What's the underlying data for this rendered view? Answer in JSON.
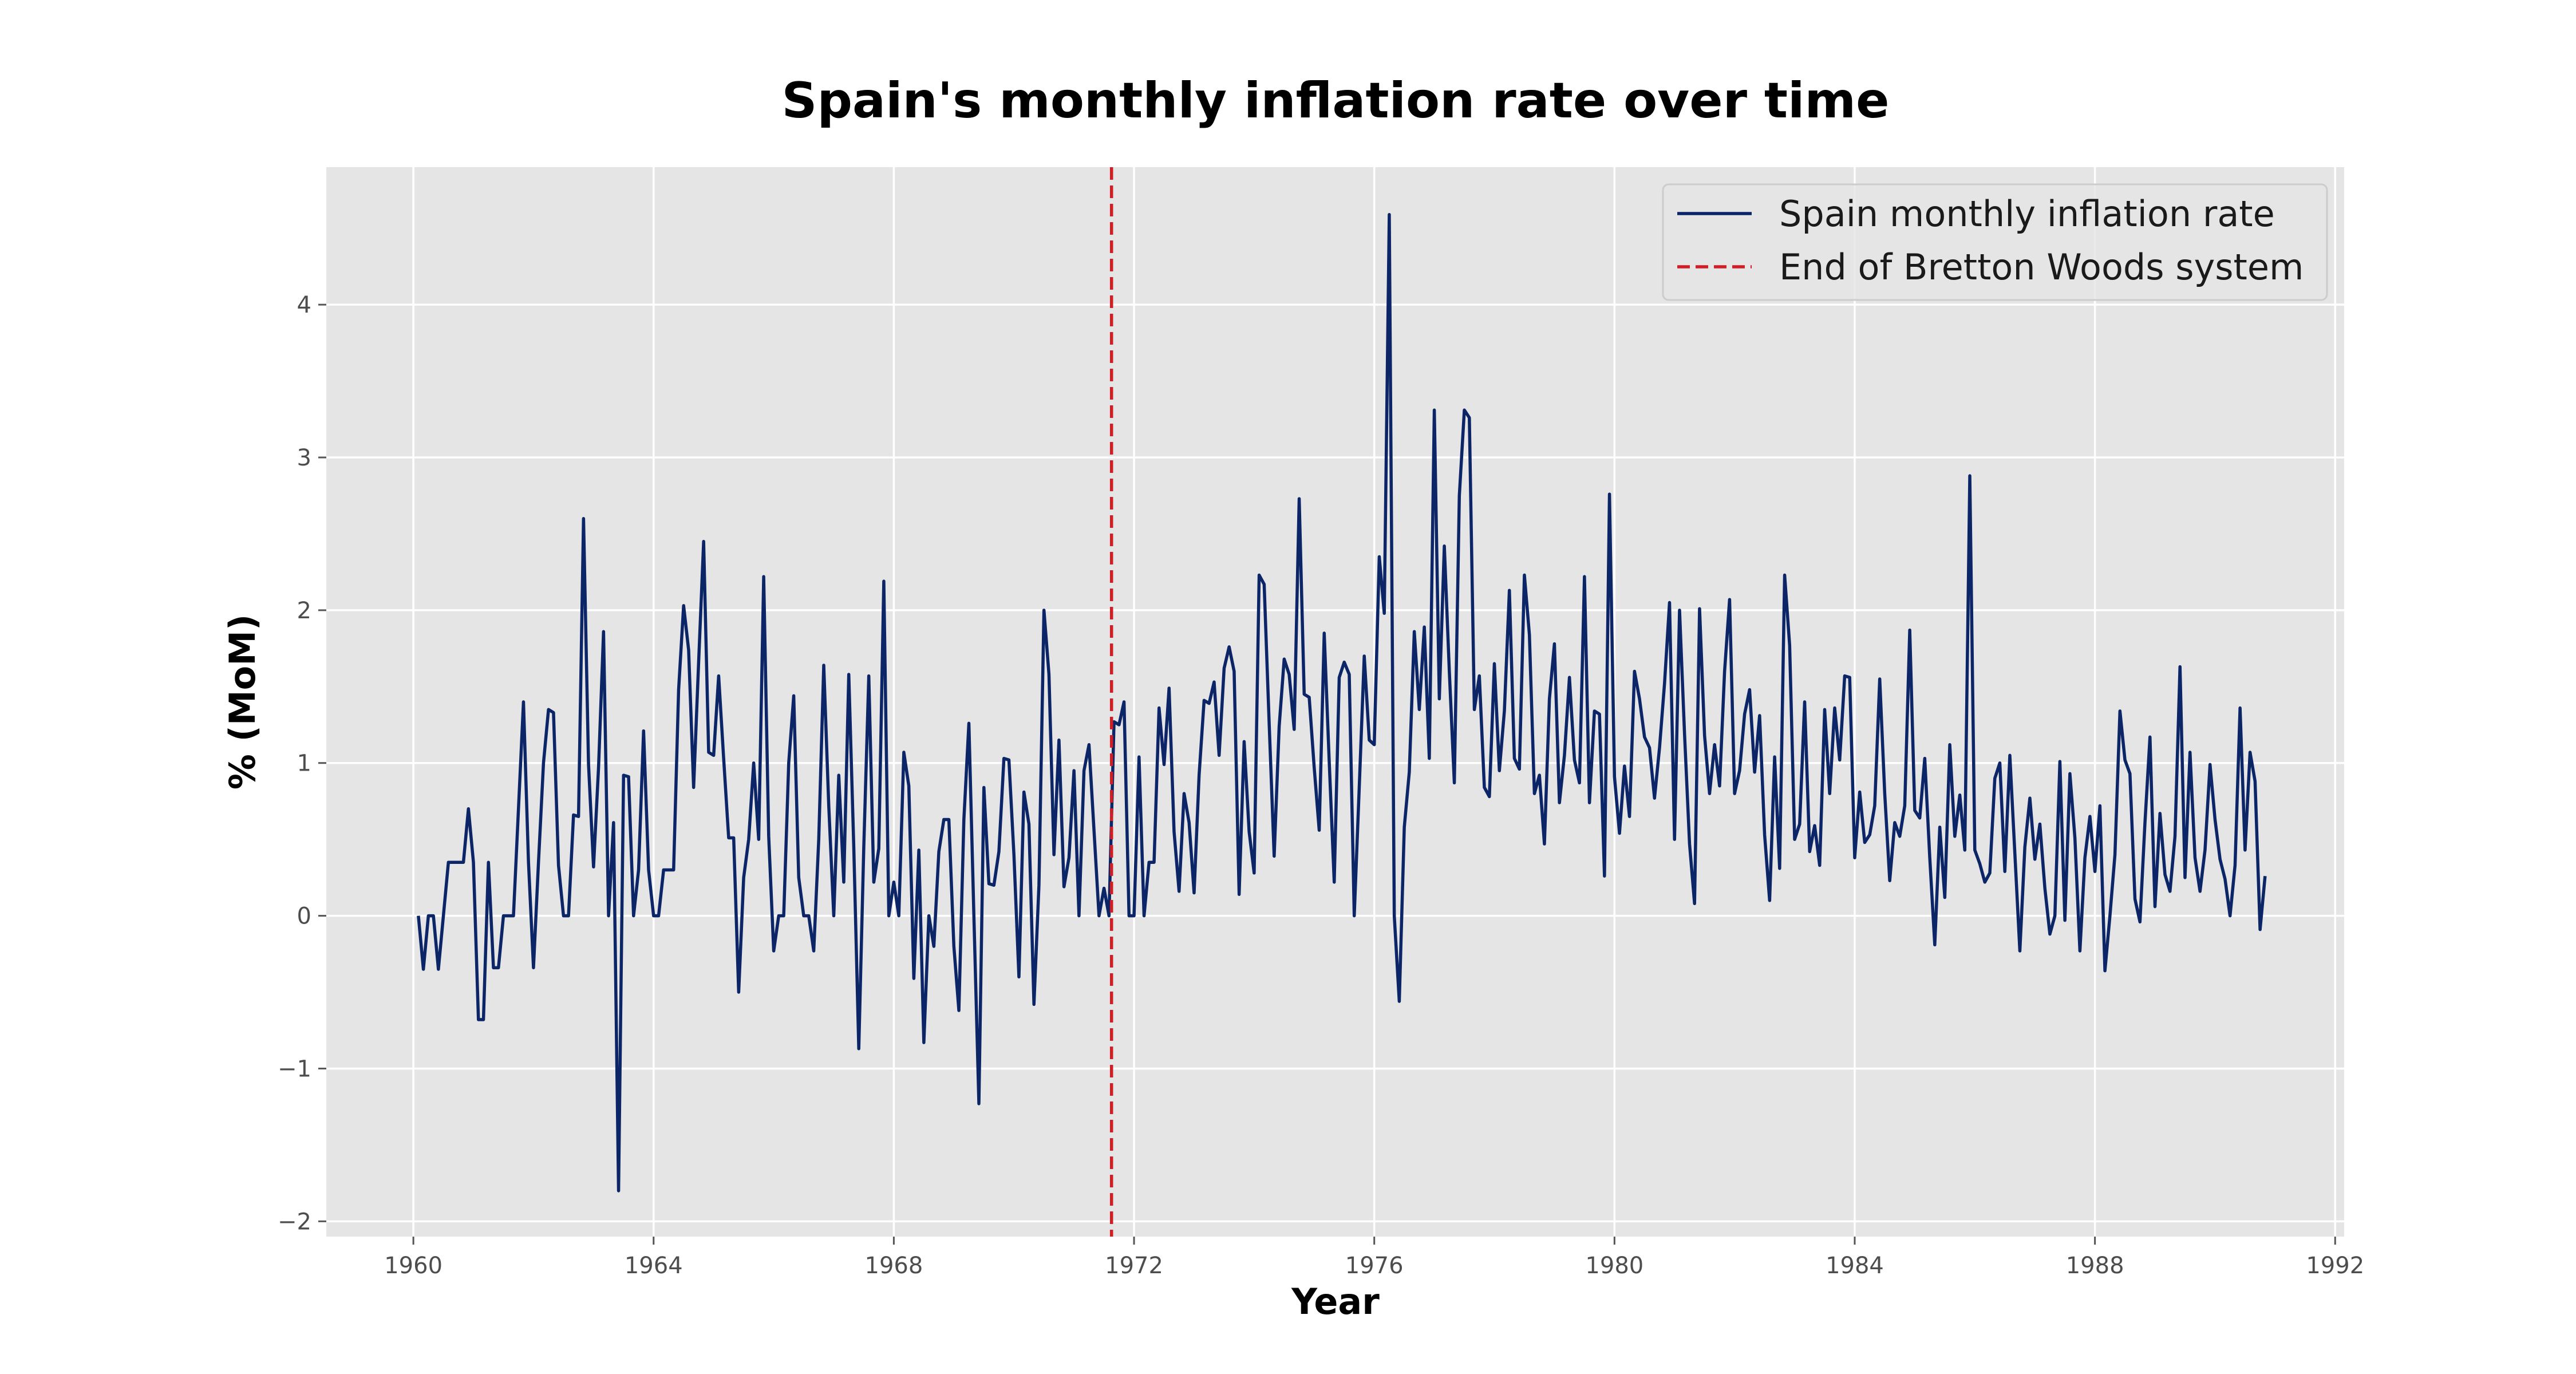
{
  "chart_data": {
    "type": "line",
    "title": "Spain's monthly inflation rate over time",
    "xlabel": "Year",
    "ylabel": "% (MoM)",
    "xlim": [
      1958.55,
      1992.15
    ],
    "ylim": [
      -2.1,
      4.9
    ],
    "xticks": [
      1960,
      1964,
      1968,
      1972,
      1976,
      1980,
      1984,
      1988,
      1992
    ],
    "yticks": [
      -2,
      -1,
      0,
      1,
      2,
      3,
      4
    ],
    "grid": true,
    "legend_position": "top-right",
    "series": [
      {
        "name": "Spain monthly inflation rate",
        "color": "#0b2566",
        "style": "solid",
        "x_start": 1960.0833,
        "x_step": 0.083333,
        "values": [
          0.0,
          -0.35,
          0.0,
          0.0,
          -0.35,
          0.0,
          0.35,
          0.35,
          0.35,
          0.35,
          0.7,
          0.35,
          -0.68,
          -0.68,
          0.35,
          -0.34,
          -0.34,
          0.0,
          0.0,
          0.0,
          0.7,
          1.4,
          0.35,
          -0.34,
          0.35,
          1.0,
          1.35,
          1.33,
          0.33,
          0.0,
          0.0,
          0.66,
          0.65,
          2.6,
          0.99,
          0.32,
          0.97,
          1.86,
          0.0,
          0.61,
          -1.8,
          0.92,
          0.91,
          0.0,
          0.3,
          1.21,
          0.3,
          0.0,
          0.0,
          0.3,
          0.3,
          0.3,
          1.48,
          2.03,
          1.74,
          0.84,
          1.66,
          2.45,
          1.07,
          1.05,
          1.57,
          1.03,
          0.51,
          0.51,
          -0.5,
          0.25,
          0.5,
          1.0,
          0.5,
          2.22,
          0.52,
          -0.23,
          0.0,
          0.0,
          1.0,
          1.44,
          0.25,
          0.0,
          0.0,
          -0.23,
          0.5,
          1.64,
          0.72,
          0.0,
          0.92,
          0.22,
          1.58,
          0.45,
          -0.87,
          0.45,
          1.57,
          0.22,
          0.44,
          2.19,
          0.0,
          0.22,
          0.0,
          1.07,
          0.85,
          -0.41,
          0.43,
          -0.83,
          0.0,
          -0.2,
          0.42,
          0.63,
          0.63,
          -0.2,
          -0.62,
          0.63,
          1.26,
          0.0,
          -1.23,
          0.84,
          0.21,
          0.2,
          0.42,
          1.03,
          1.02,
          0.4,
          -0.4,
          0.81,
          0.6,
          -0.58,
          0.2,
          2.0,
          1.58,
          0.4,
          1.15,
          0.19,
          0.38,
          0.95,
          0.0,
          0.95,
          1.12,
          0.56,
          0.0,
          0.18,
          0.0,
          1.27,
          1.25,
          1.4,
          0.0,
          0.0,
          1.04,
          0.0,
          0.35,
          0.35,
          1.36,
          0.99,
          1.49,
          0.55,
          0.16,
          0.8,
          0.61,
          0.15,
          0.92,
          1.41,
          1.39,
          1.53,
          1.05,
          1.62,
          1.76,
          1.6,
          0.14,
          1.14,
          0.55,
          0.28,
          2.23,
          2.17,
          1.26,
          0.39,
          1.24,
          1.68,
          1.58,
          1.22,
          2.73,
          1.45,
          1.43,
          0.97,
          0.56,
          1.85,
          1.01,
          0.22,
          1.56,
          1.66,
          1.58,
          0.0,
          0.84,
          1.7,
          1.15,
          1.12,
          2.35,
          1.98,
          4.59,
          0.0,
          -0.56,
          0.58,
          0.94,
          1.86,
          1.35,
          1.89,
          1.03,
          3.31,
          1.42,
          2.42,
          1.6,
          0.87,
          2.75,
          3.31,
          3.26,
          1.35,
          1.57,
          0.84,
          0.78,
          1.65,
          0.95,
          1.34,
          2.13,
          1.03,
          0.96,
          2.23,
          1.84,
          0.8,
          0.92,
          0.47,
          1.42,
          1.78,
          0.74,
          1.05,
          1.56,
          1.02,
          0.87,
          2.22,
          0.74,
          1.34,
          1.32,
          0.26,
          2.76,
          0.91,
          0.54,
          0.98,
          0.65,
          1.6,
          1.42,
          1.17,
          1.1,
          0.77,
          1.1,
          1.52,
          2.05,
          0.5,
          2.0,
          1.19,
          0.47,
          0.08,
          2.01,
          1.18,
          0.8,
          1.12,
          0.85,
          1.6,
          2.07,
          0.8,
          0.95,
          1.32,
          1.48,
          0.94,
          1.31,
          0.53,
          0.1,
          1.04,
          0.31,
          2.23,
          1.77,
          0.5,
          0.6,
          1.4,
          0.42,
          0.59,
          0.33,
          1.35,
          0.8,
          1.36,
          1.02,
          1.57,
          1.56,
          0.38,
          0.81,
          0.48,
          0.53,
          0.72,
          1.55,
          0.8,
          0.23,
          0.61,
          0.52,
          0.72,
          1.87,
          0.69,
          0.64,
          1.03,
          0.38,
          -0.19,
          0.58,
          0.12,
          1.12,
          0.52,
          0.79,
          0.43,
          2.88,
          0.43,
          0.34,
          0.22,
          0.28,
          0.9,
          1.0,
          0.29,
          1.05,
          0.41,
          -0.23,
          0.45,
          0.77,
          0.37,
          0.6,
          0.18,
          -0.12,
          0.0,
          1.01,
          -0.03,
          0.93,
          0.51,
          -0.23,
          0.38,
          0.65,
          0.29,
          0.72,
          -0.36,
          0.0,
          0.4,
          1.34,
          1.02,
          0.93,
          0.11,
          -0.04,
          0.61,
          1.17,
          0.06,
          0.67,
          0.27,
          0.16,
          0.52,
          1.63,
          0.25,
          1.07,
          0.38,
          0.16,
          0.43,
          0.99,
          0.63,
          0.37,
          0.24,
          0.0,
          0.33,
          1.36,
          0.43,
          1.07,
          0.88,
          -0.09,
          0.26
        ]
      },
      {
        "name": "End of Bretton Woods system",
        "color": "#d11d24",
        "style": "dashed",
        "x_value": 1971.625
      }
    ]
  }
}
